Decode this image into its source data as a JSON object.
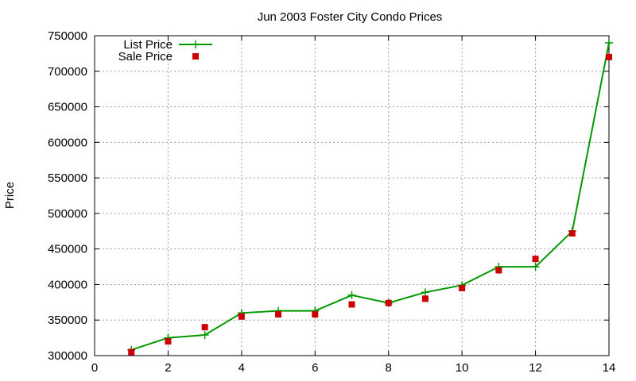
{
  "chart_data": {
    "type": "line",
    "title": "Jun 2003 Foster City Condo Prices",
    "xlabel": "",
    "ylabel": "Price",
    "xlim": [
      0,
      14
    ],
    "ylim": [
      300000,
      750000
    ],
    "xticks": [
      0,
      2,
      4,
      6,
      8,
      10,
      12,
      14
    ],
    "yticks": [
      300000,
      350000,
      400000,
      450000,
      500000,
      550000,
      600000,
      650000,
      700000,
      750000
    ],
    "grid": true,
    "legend_position": "top-left",
    "series": [
      {
        "name": "List Price",
        "style": "line-with-plus-markers",
        "color": "#009900",
        "x": [
          1,
          2,
          3,
          4,
          5,
          6,
          7,
          8,
          9,
          10,
          11,
          12,
          13,
          14
        ],
        "y": [
          308000,
          325000,
          329000,
          360000,
          363000,
          363000,
          385000,
          374000,
          389000,
          399000,
          425000,
          425000,
          475000,
          740000
        ]
      },
      {
        "name": "Sale Price",
        "style": "square-markers",
        "color": "#cc0000",
        "x": [
          1,
          2,
          3,
          4,
          5,
          6,
          7,
          8,
          9,
          10,
          11,
          12,
          13,
          14
        ],
        "y": [
          305000,
          320000,
          340000,
          355000,
          358000,
          358000,
          372000,
          374000,
          380000,
          395000,
          420000,
          436000,
          472000,
          720000
        ]
      }
    ]
  }
}
